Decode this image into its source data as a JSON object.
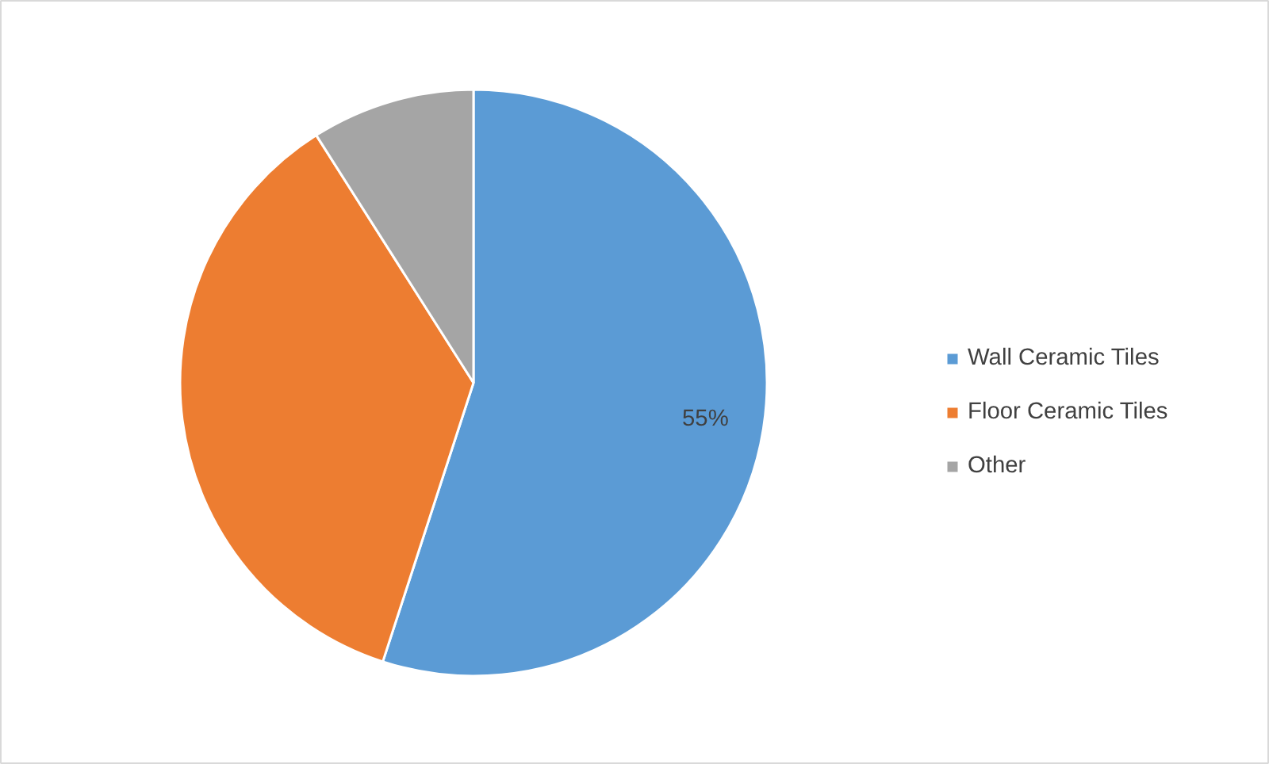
{
  "chart_data": {
    "type": "pie",
    "categories": [
      "Wall Ceramic Tiles",
      "Floor Ceramic Tiles",
      "Other"
    ],
    "values": [
      55,
      36,
      9
    ],
    "colors": [
      "#5b9bd5",
      "#ed7d31",
      "#a5a5a5"
    ],
    "value_labels": [
      "55%",
      null,
      null
    ],
    "legend": "right"
  }
}
